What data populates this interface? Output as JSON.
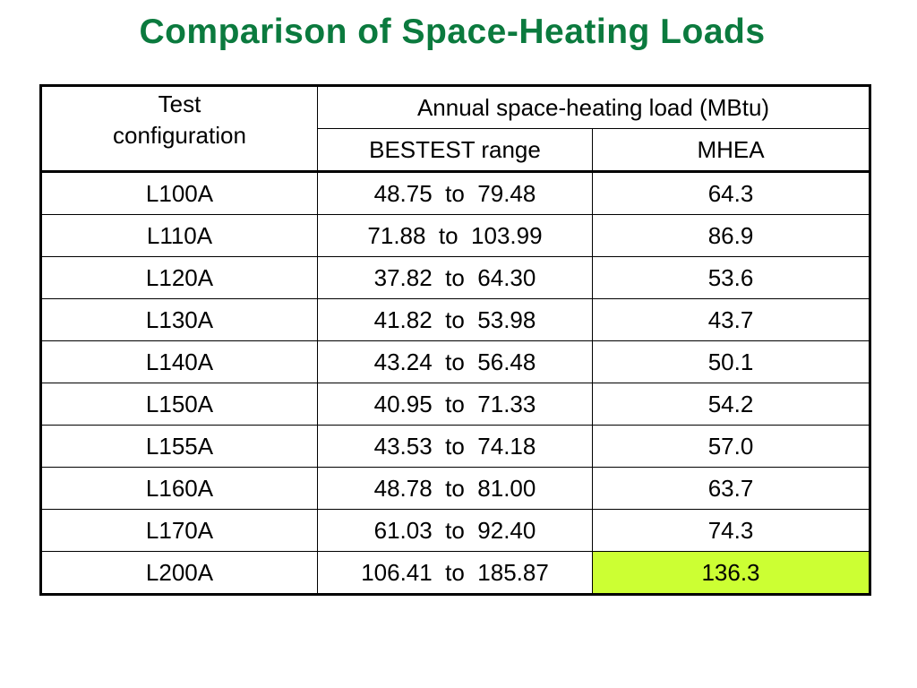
{
  "title": "Comparison of Space-Heating Loads",
  "table": {
    "header": {
      "config_line1": "Test",
      "config_line2": "configuration",
      "group": "Annual space-heating load (MBtu)",
      "range": "BESTEST range",
      "mhea": "MHEA"
    },
    "rows": [
      {
        "config": "L100A",
        "range": "48.75  to  79.48",
        "mhea": "64.3"
      },
      {
        "config": "L110A",
        "range": "71.88  to  103.99",
        "mhea": "86.9"
      },
      {
        "config": "L120A",
        "range": "37.82  to  64.30",
        "mhea": "53.6"
      },
      {
        "config": "L130A",
        "range": "41.82  to  53.98",
        "mhea": "43.7"
      },
      {
        "config": "L140A",
        "range": "43.24  to  56.48",
        "mhea": "50.1"
      },
      {
        "config": "L150A",
        "range": "40.95  to  71.33",
        "mhea": "54.2"
      },
      {
        "config": "L155A",
        "range": "43.53  to  74.18",
        "mhea": "57.0"
      },
      {
        "config": "L160A",
        "range": "48.78  to  81.00",
        "mhea": "63.7"
      },
      {
        "config": "L170A",
        "range": "61.03  to  92.40",
        "mhea": "74.3"
      },
      {
        "config": "L200A",
        "range": "106.41  to  185.87",
        "mhea": "136.3"
      }
    ],
    "highlight_color": "#ccff33",
    "highlight_cell": "L200A MHEA"
  },
  "colors": {
    "title": "#0b7a3e"
  }
}
